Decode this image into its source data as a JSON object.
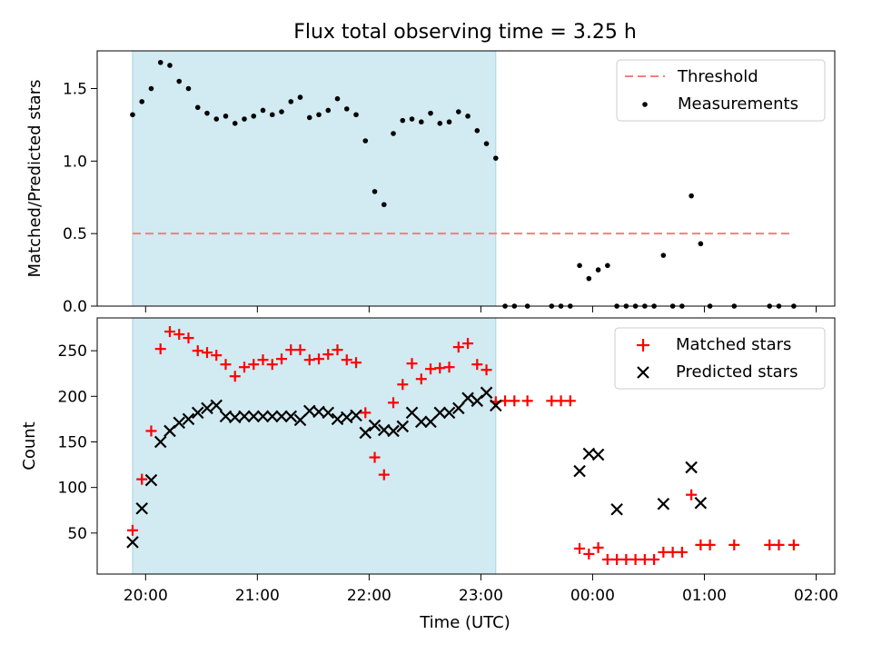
{
  "chart_data": {
    "title": "Flux total observing time = 3.25 h",
    "type": "scatter",
    "xlabel": "Time (UTC)",
    "x_ticks": [
      "20:00",
      "21:00",
      "22:00",
      "23:00",
      "00:00",
      "01:00",
      "02:00"
    ],
    "xlim": [
      "19:34",
      "02:10"
    ],
    "observing_window": [
      "19:53",
      "23:08"
    ],
    "top_panel": {
      "ylabel": "Matched/Predicted stars",
      "ylim": [
        0,
        1.76
      ],
      "y_ticks": [
        "0.0",
        "0.5",
        "1.0",
        "1.5"
      ],
      "threshold": {
        "name": "Threshold",
        "value": 0.5,
        "x_range": [
          "19:53",
          "01:48"
        ],
        "color": "#f08080"
      },
      "series": [
        {
          "name": "Measurements",
          "color": "#000000",
          "points": [
            [
              "19:53",
              1.32
            ],
            [
              "19:58",
              1.41
            ],
            [
              "20:03",
              1.5
            ],
            [
              "20:08",
              1.68
            ],
            [
              "20:13",
              1.66
            ],
            [
              "20:18",
              1.55
            ],
            [
              "20:23",
              1.5
            ],
            [
              "20:28",
              1.37
            ],
            [
              "20:33",
              1.33
            ],
            [
              "20:38",
              1.29
            ],
            [
              "20:43",
              1.31
            ],
            [
              "20:48",
              1.26
            ],
            [
              "20:53",
              1.29
            ],
            [
              "20:58",
              1.31
            ],
            [
              "21:03",
              1.35
            ],
            [
              "21:08",
              1.32
            ],
            [
              "21:13",
              1.34
            ],
            [
              "21:18",
              1.41
            ],
            [
              "21:23",
              1.44
            ],
            [
              "21:28",
              1.3
            ],
            [
              "21:33",
              1.32
            ],
            [
              "21:38",
              1.35
            ],
            [
              "21:43",
              1.43
            ],
            [
              "21:48",
              1.36
            ],
            [
              "21:53",
              1.32
            ],
            [
              "21:58",
              1.14
            ],
            [
              "22:03",
              0.79
            ],
            [
              "22:08",
              0.7
            ],
            [
              "22:13",
              1.19
            ],
            [
              "22:18",
              1.28
            ],
            [
              "22:23",
              1.29
            ],
            [
              "22:28",
              1.27
            ],
            [
              "22:33",
              1.33
            ],
            [
              "22:38",
              1.26
            ],
            [
              "22:43",
              1.27
            ],
            [
              "22:48",
              1.34
            ],
            [
              "22:53",
              1.31
            ],
            [
              "22:58",
              1.21
            ],
            [
              "23:03",
              1.12
            ],
            [
              "23:08",
              1.02
            ],
            [
              "23:13",
              0.0
            ],
            [
              "23:18",
              0.0
            ],
            [
              "23:25",
              0.0
            ],
            [
              "23:38",
              0.0
            ],
            [
              "23:43",
              0.0
            ],
            [
              "23:48",
              0.0
            ],
            [
              "23:53",
              0.28
            ],
            [
              "23:58",
              0.19
            ],
            [
              "00:03",
              0.25
            ],
            [
              "00:08",
              0.28
            ],
            [
              "00:13",
              0.0
            ],
            [
              "00:18",
              0.0
            ],
            [
              "00:23",
              0.0
            ],
            [
              "00:28",
              0.0
            ],
            [
              "00:33",
              0.0
            ],
            [
              "00:38",
              0.35
            ],
            [
              "00:43",
              0.0
            ],
            [
              "00:48",
              0.0
            ],
            [
              "00:53",
              0.76
            ],
            [
              "00:58",
              0.43
            ],
            [
              "01:03",
              0.0
            ],
            [
              "01:16",
              0.0
            ],
            [
              "01:35",
              0.0
            ],
            [
              "01:40",
              0.0
            ],
            [
              "01:48",
              0.0
            ]
          ]
        }
      ],
      "legend": {
        "placement": "upper right",
        "entries": [
          "Threshold",
          "Measurements"
        ]
      }
    },
    "bottom_panel": {
      "ylabel": "Count",
      "ylim": [
        5,
        286
      ],
      "y_ticks": [
        "50",
        "100",
        "150",
        "200",
        "250"
      ],
      "series": [
        {
          "name": "Matched stars",
          "color": "#ff0000",
          "marker": "+",
          "points": [
            [
              "19:53",
              53
            ],
            [
              "19:58",
              109
            ],
            [
              "20:03",
              162
            ],
            [
              "20:08",
              252
            ],
            [
              "20:13",
              271
            ],
            [
              "20:18",
              268
            ],
            [
              "20:23",
              264
            ],
            [
              "20:28",
              250
            ],
            [
              "20:33",
              248
            ],
            [
              "20:38",
              245
            ],
            [
              "20:43",
              235
            ],
            [
              "20:48",
              222
            ],
            [
              "20:53",
              232
            ],
            [
              "20:58",
              235
            ],
            [
              "21:03",
              240
            ],
            [
              "21:08",
              235
            ],
            [
              "21:13",
              241
            ],
            [
              "21:18",
              251
            ],
            [
              "21:23",
              251
            ],
            [
              "21:28",
              240
            ],
            [
              "21:33",
              241
            ],
            [
              "21:38",
              246
            ],
            [
              "21:43",
              251
            ],
            [
              "21:48",
              240
            ],
            [
              "21:53",
              237
            ],
            [
              "21:58",
              182
            ],
            [
              "22:03",
              133
            ],
            [
              "22:08",
              114
            ],
            [
              "22:13",
              193
            ],
            [
              "22:18",
              213
            ],
            [
              "22:23",
              236
            ],
            [
              "22:28",
              219
            ],
            [
              "22:33",
              230
            ],
            [
              "22:38",
              231
            ],
            [
              "22:43",
              232
            ],
            [
              "22:48",
              254
            ],
            [
              "22:53",
              258
            ],
            [
              "22:58",
              235
            ],
            [
              "23:03",
              229
            ],
            [
              "23:08",
              194
            ],
            [
              "23:13",
              195
            ],
            [
              "23:18",
              195
            ],
            [
              "23:25",
              195
            ],
            [
              "23:38",
              195
            ],
            [
              "23:43",
              195
            ],
            [
              "23:48",
              195
            ],
            [
              "23:53",
              33
            ],
            [
              "23:58",
              27
            ],
            [
              "00:03",
              34
            ],
            [
              "00:08",
              21
            ],
            [
              "00:13",
              21
            ],
            [
              "00:18",
              21
            ],
            [
              "00:23",
              21
            ],
            [
              "00:28",
              21
            ],
            [
              "00:33",
              21
            ],
            [
              "00:38",
              29
            ],
            [
              "00:43",
              29
            ],
            [
              "00:48",
              29
            ],
            [
              "00:53",
              92
            ],
            [
              "00:58",
              37
            ],
            [
              "01:03",
              37
            ],
            [
              "01:16",
              37
            ],
            [
              "01:35",
              37
            ],
            [
              "01:40",
              37
            ],
            [
              "01:48",
              37
            ]
          ]
        },
        {
          "name": "Predicted stars",
          "color": "#000000",
          "marker": "x",
          "points": [
            [
              "19:53",
              40
            ],
            [
              "19:58",
              77
            ],
            [
              "20:03",
              108
            ],
            [
              "20:08",
              150
            ],
            [
              "20:13",
              162
            ],
            [
              "20:18",
              171
            ],
            [
              "20:23",
              175
            ],
            [
              "20:28",
              182
            ],
            [
              "20:33",
              187
            ],
            [
              "20:38",
              190
            ],
            [
              "20:43",
              178
            ],
            [
              "20:48",
              177
            ],
            [
              "20:53",
              178
            ],
            [
              "20:58",
              178
            ],
            [
              "21:03",
              178
            ],
            [
              "21:08",
              178
            ],
            [
              "21:13",
              178
            ],
            [
              "21:18",
              178
            ],
            [
              "21:23",
              174
            ],
            [
              "21:28",
              184
            ],
            [
              "21:33",
              183
            ],
            [
              "21:38",
              182
            ],
            [
              "21:43",
              175
            ],
            [
              "21:48",
              177
            ],
            [
              "21:53",
              179
            ],
            [
              "21:58",
              160
            ],
            [
              "22:03",
              168
            ],
            [
              "22:08",
              163
            ],
            [
              "22:13",
              162
            ],
            [
              "22:18",
              167
            ],
            [
              "22:23",
              182
            ],
            [
              "22:28",
              172
            ],
            [
              "22:33",
              172
            ],
            [
              "22:38",
              182
            ],
            [
              "22:43",
              182
            ],
            [
              "22:48",
              187
            ],
            [
              "22:53",
              198
            ],
            [
              "22:58",
              195
            ],
            [
              "23:03",
              204
            ],
            [
              "23:08",
              190
            ],
            [
              "23:53",
              118
            ],
            [
              "23:58",
              137
            ],
            [
              "00:03",
              136
            ],
            [
              "00:13",
              76
            ],
            [
              "00:38",
              82
            ],
            [
              "00:53",
              122
            ],
            [
              "00:58",
              83
            ]
          ]
        }
      ],
      "legend": {
        "placement": "upper right",
        "entries": [
          "Matched stars",
          "Predicted stars"
        ]
      }
    },
    "grid": false
  }
}
